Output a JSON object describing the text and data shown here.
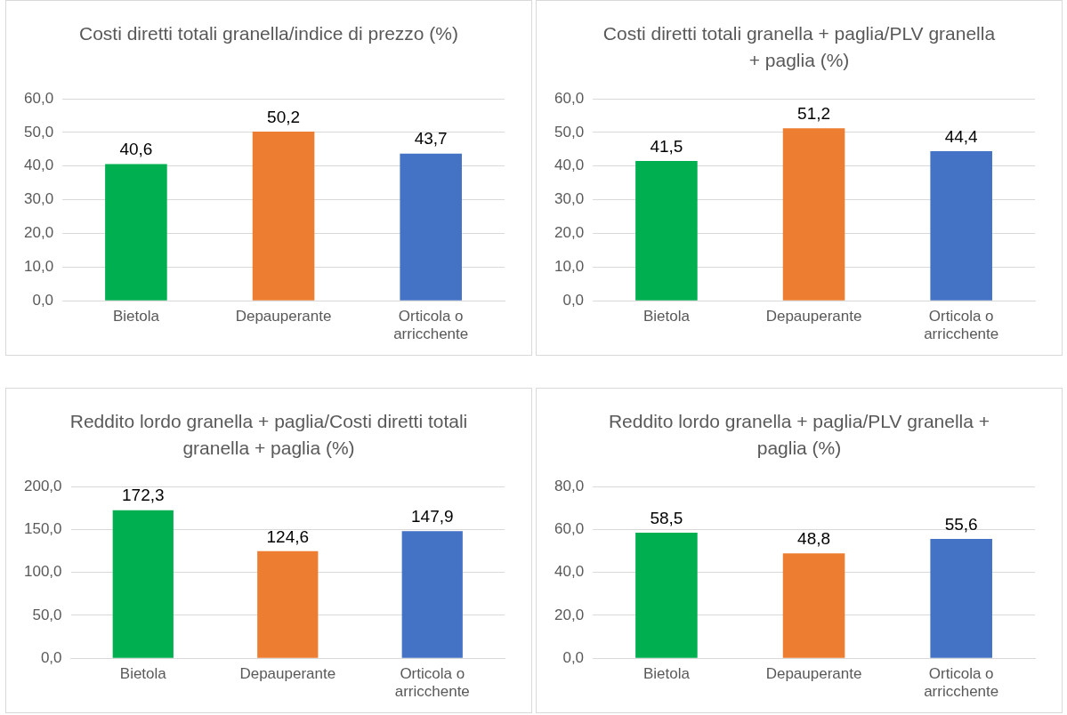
{
  "chart_data": [
    {
      "type": "bar",
      "title": "Costi diretti totali granella/indice di prezzo (%)",
      "categories": [
        "Bietola",
        "Depauperante",
        "Orticola o arricchente"
      ],
      "values": [
        40.6,
        50.2,
        43.7
      ],
      "value_labels": [
        "40,6",
        "50,2",
        "43,7"
      ],
      "colors": [
        "#00b050",
        "#ed7d31",
        "#4472c4"
      ],
      "ylim": [
        0,
        60
      ],
      "yticks": [
        {
          "value": 0,
          "label": "0,0"
        },
        {
          "value": 10,
          "label": "10,0"
        },
        {
          "value": 20,
          "label": "20,0"
        },
        {
          "value": 30,
          "label": "30,0"
        },
        {
          "value": 40,
          "label": "40,0"
        },
        {
          "value": 50,
          "label": "50,0"
        },
        {
          "value": 60,
          "label": "60,0"
        }
      ],
      "grid": "y"
    },
    {
      "type": "bar",
      "title": "Costi diretti totali granella + paglia/PLV granella + paglia (%)",
      "categories": [
        "Bietola",
        "Depauperante",
        "Orticola o arricchente"
      ],
      "values": [
        41.5,
        51.2,
        44.4
      ],
      "value_labels": [
        "41,5",
        "51,2",
        "44,4"
      ],
      "colors": [
        "#00b050",
        "#ed7d31",
        "#4472c4"
      ],
      "ylim": [
        0,
        60
      ],
      "yticks": [
        {
          "value": 0,
          "label": "0,0"
        },
        {
          "value": 10,
          "label": "10,0"
        },
        {
          "value": 20,
          "label": "20,0"
        },
        {
          "value": 30,
          "label": "30,0"
        },
        {
          "value": 40,
          "label": "40,0"
        },
        {
          "value": 50,
          "label": "50,0"
        },
        {
          "value": 60,
          "label": "60,0"
        }
      ],
      "grid": "y"
    },
    {
      "type": "bar",
      "title": "Reddito lordo granella + paglia/Costi diretti totali granella + paglia (%)",
      "categories": [
        "Bietola",
        "Depauperante",
        "Orticola o arricchente"
      ],
      "values": [
        172.3,
        124.6,
        147.9
      ],
      "value_labels": [
        "172,3",
        "124,6",
        "147,9"
      ],
      "colors": [
        "#00b050",
        "#ed7d31",
        "#4472c4"
      ],
      "ylim": [
        0,
        200
      ],
      "yticks": [
        {
          "value": 0,
          "label": "0,0"
        },
        {
          "value": 50,
          "label": "50,0"
        },
        {
          "value": 100,
          "label": "100,0"
        },
        {
          "value": 150,
          "label": "150,0"
        },
        {
          "value": 200,
          "label": "200,0"
        }
      ],
      "grid": "y"
    },
    {
      "type": "bar",
      "title": "Reddito lordo granella + paglia/PLV granella + paglia (%)",
      "categories": [
        "Bietola",
        "Depauperante",
        "Orticola o arricchente"
      ],
      "values": [
        58.5,
        48.8,
        55.6
      ],
      "value_labels": [
        "58,5",
        "48,8",
        "55,6"
      ],
      "colors": [
        "#00b050",
        "#ed7d31",
        "#4472c4"
      ],
      "ylim": [
        0,
        80
      ],
      "yticks": [
        {
          "value": 0,
          "label": "0,0"
        },
        {
          "value": 20,
          "label": "20,0"
        },
        {
          "value": 40,
          "label": "40,0"
        },
        {
          "value": 60,
          "label": "60,0"
        },
        {
          "value": 80,
          "label": "80,0"
        }
      ],
      "grid": "y"
    }
  ]
}
